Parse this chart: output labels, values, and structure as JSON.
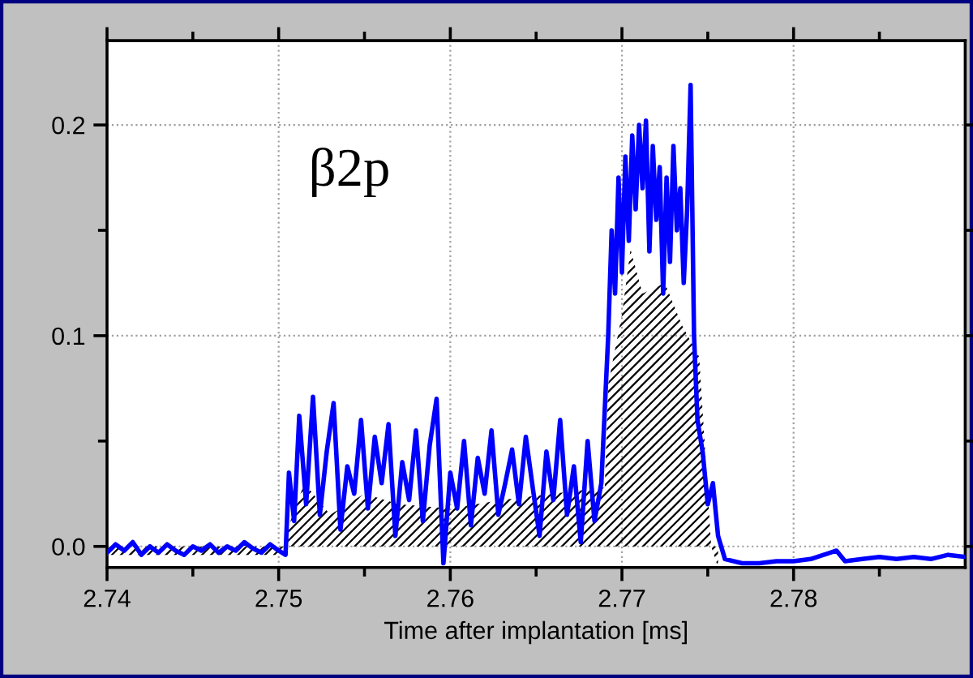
{
  "chart_data": {
    "type": "line",
    "xlabel": "Time after implantation [ms]",
    "annotations": [
      "β2p"
    ],
    "xlim": [
      2.74,
      2.79
    ],
    "xticks": [
      2.74,
      2.75,
      2.76,
      2.77,
      2.78
    ],
    "ylim": [
      -0.01,
      0.24
    ],
    "yticks": [
      {
        "value": 0,
        "label": "0.0"
      },
      {
        "value": 0.1,
        "label": "0.1"
      },
      {
        "value": 0.2,
        "label": "0.2"
      }
    ],
    "grid": true,
    "legend": false,
    "marker": "none",
    "line_style": "solid",
    "series": [
      {
        "type": "area",
        "color": "#000000",
        "x": [
          2.74,
          2.7504,
          2.7506,
          2.7515,
          2.753,
          2.755,
          2.757,
          2.76,
          2.763,
          2.766,
          2.769,
          2.7692,
          2.77,
          2.7705,
          2.7712,
          2.7725,
          2.7735,
          2.7745,
          2.7752,
          2.7756
        ],
        "values": [
          -0.004,
          -0.004,
          0.01,
          0.03,
          0.015,
          0.025,
          0.02,
          0.018,
          0.022,
          0.025,
          0.028,
          0.077,
          0.11,
          0.141,
          0.12,
          0.125,
          0.105,
          0.09,
          0.0,
          -0.01
        ]
      },
      {
        "color": "#0000ff",
        "x": [
          2.74,
          2.7405,
          2.741,
          2.7415,
          2.742,
          2.7425,
          2.743,
          2.7435,
          2.744,
          2.7445,
          2.745,
          2.7455,
          2.746,
          2.7465,
          2.747,
          2.7475,
          2.748,
          2.7485,
          2.749,
          2.7495,
          2.75,
          2.7504,
          2.7506,
          2.7509,
          2.7512,
          2.7516,
          2.752,
          2.7524,
          2.7528,
          2.7532,
          2.7536,
          2.754,
          2.7544,
          2.7548,
          2.7552,
          2.7556,
          2.756,
          2.7564,
          2.7568,
          2.7572,
          2.7576,
          2.758,
          2.7584,
          2.7588,
          2.7592,
          2.7596,
          2.76,
          2.7604,
          2.7608,
          2.7612,
          2.7616,
          2.762,
          2.7624,
          2.7628,
          2.7632,
          2.7636,
          2.764,
          2.7644,
          2.7648,
          2.7652,
          2.7656,
          2.766,
          2.7664,
          2.7668,
          2.7672,
          2.7676,
          2.768,
          2.7684,
          2.7688,
          2.7692,
          2.7694,
          2.7696,
          2.7698,
          2.77,
          2.7702,
          2.7704,
          2.7706,
          2.7708,
          2.771,
          2.7712,
          2.7714,
          2.7716,
          2.7718,
          2.772,
          2.7722,
          2.7724,
          2.7726,
          2.7728,
          2.773,
          2.7732,
          2.7734,
          2.7736,
          2.7738,
          2.774,
          2.7742,
          2.7744,
          2.7747,
          2.775,
          2.7753,
          2.7756,
          2.776,
          2.777,
          2.778,
          2.779,
          2.78,
          2.781,
          2.7825,
          2.783,
          2.784,
          2.785,
          2.786,
          2.787,
          2.788,
          2.789,
          2.79
        ],
        "values": [
          -0.003,
          0.001,
          -0.002,
          0.002,
          -0.004,
          0.0,
          -0.003,
          0.001,
          -0.002,
          -0.004,
          0.0,
          -0.002,
          0.001,
          -0.003,
          0.0,
          -0.002,
          0.002,
          -0.001,
          -0.003,
          0.001,
          -0.002,
          -0.004,
          0.035,
          0.012,
          0.062,
          0.02,
          0.071,
          0.015,
          0.045,
          0.068,
          0.008,
          0.038,
          0.025,
          0.06,
          0.018,
          0.052,
          0.03,
          0.058,
          0.005,
          0.04,
          0.022,
          0.055,
          0.012,
          0.048,
          0.07,
          -0.008,
          0.035,
          0.018,
          0.05,
          0.01,
          0.042,
          0.025,
          0.055,
          0.015,
          0.03,
          0.046,
          0.02,
          0.052,
          0.028,
          0.005,
          0.045,
          0.022,
          0.06,
          0.015,
          0.038,
          0.002,
          0.05,
          0.012,
          0.03,
          0.1,
          0.15,
          0.12,
          0.175,
          0.13,
          0.185,
          0.145,
          0.195,
          0.16,
          0.2,
          0.17,
          0.202,
          0.14,
          0.19,
          0.155,
          0.18,
          0.12,
          0.175,
          0.135,
          0.19,
          0.15,
          0.17,
          0.125,
          0.16,
          0.219,
          0.1,
          0.06,
          0.045,
          0.02,
          0.03,
          0.005,
          -0.006,
          -0.008,
          -0.008,
          -0.007,
          -0.007,
          -0.006,
          -0.002,
          -0.007,
          -0.006,
          -0.005,
          -0.006,
          -0.005,
          -0.006,
          -0.004,
          -0.005
        ]
      }
    ]
  }
}
